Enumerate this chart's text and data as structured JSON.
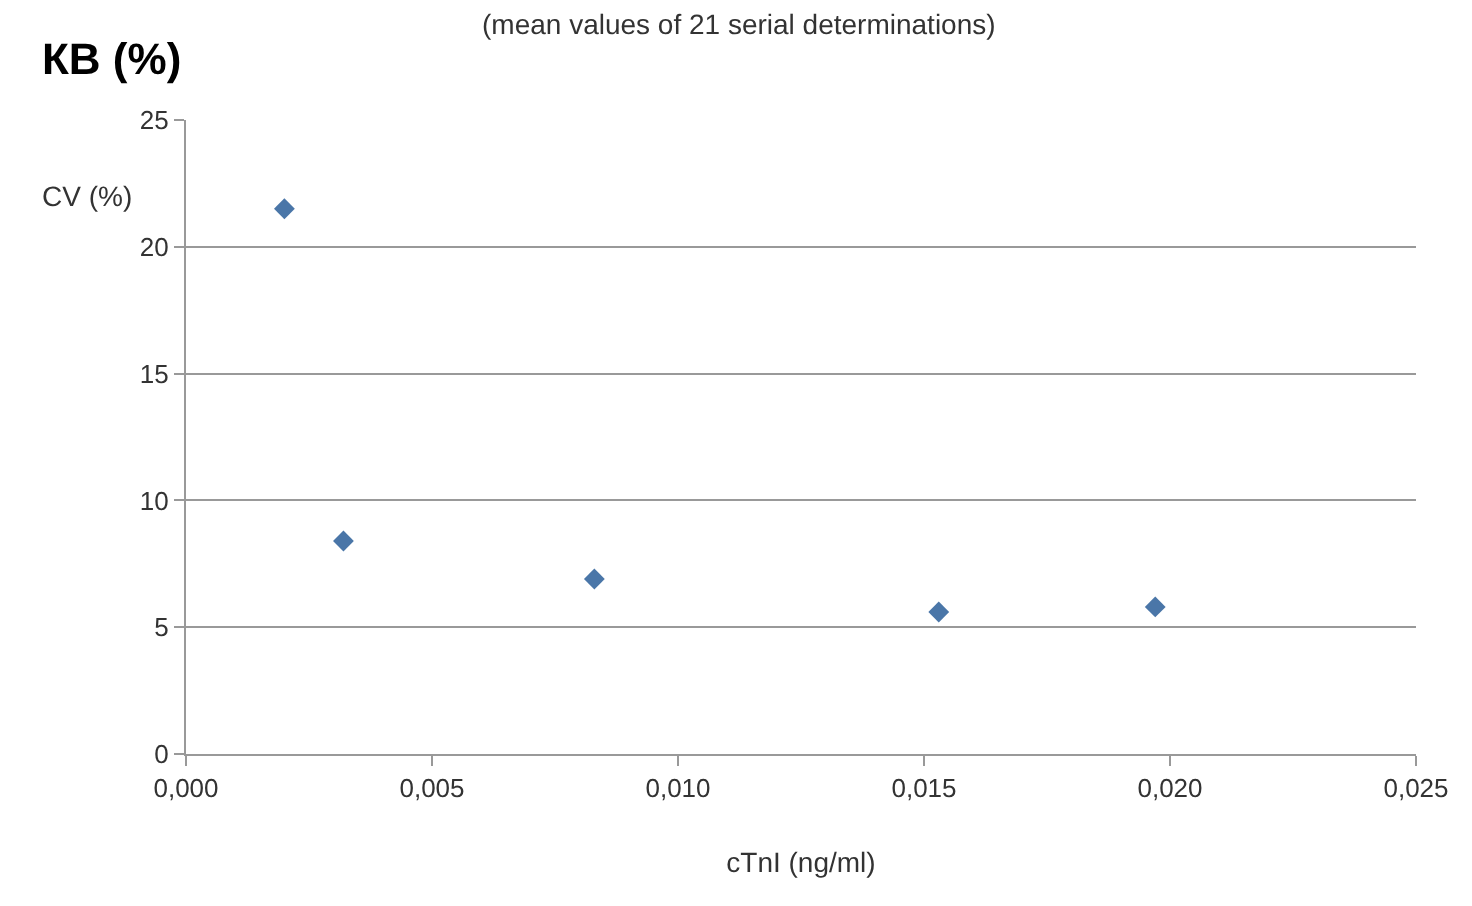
{
  "chart_data": {
    "type": "scatter",
    "title": "КВ (%)",
    "subtitle": "(mean values of 21 serial determinations)",
    "xlabel": "cTnI (ng/ml)",
    "ylabel": "CV (%)",
    "x": [
      0.002,
      0.0032,
      0.0083,
      0.0153,
      0.0197
    ],
    "series": [
      {
        "color": "#4a76a8",
        "values": [
          21.5,
          8.4,
          6.9,
          5.6,
          5.8
        ]
      }
    ],
    "xlim": [
      0,
      0.025
    ],
    "xticks": [
      {
        "value": 0,
        "label": "0,000"
      },
      {
        "value": 0.005,
        "label": "0,005"
      },
      {
        "value": 0.01,
        "label": "0,010"
      },
      {
        "value": 0.015,
        "label": "0,015"
      },
      {
        "value": 0.02,
        "label": "0,020"
      },
      {
        "value": 0.025,
        "label": "0,025"
      }
    ],
    "ylim": [
      0,
      25
    ],
    "yticks": [
      0,
      5,
      10,
      15,
      20,
      25
    ],
    "grid": "y",
    "marker": "diamond"
  }
}
